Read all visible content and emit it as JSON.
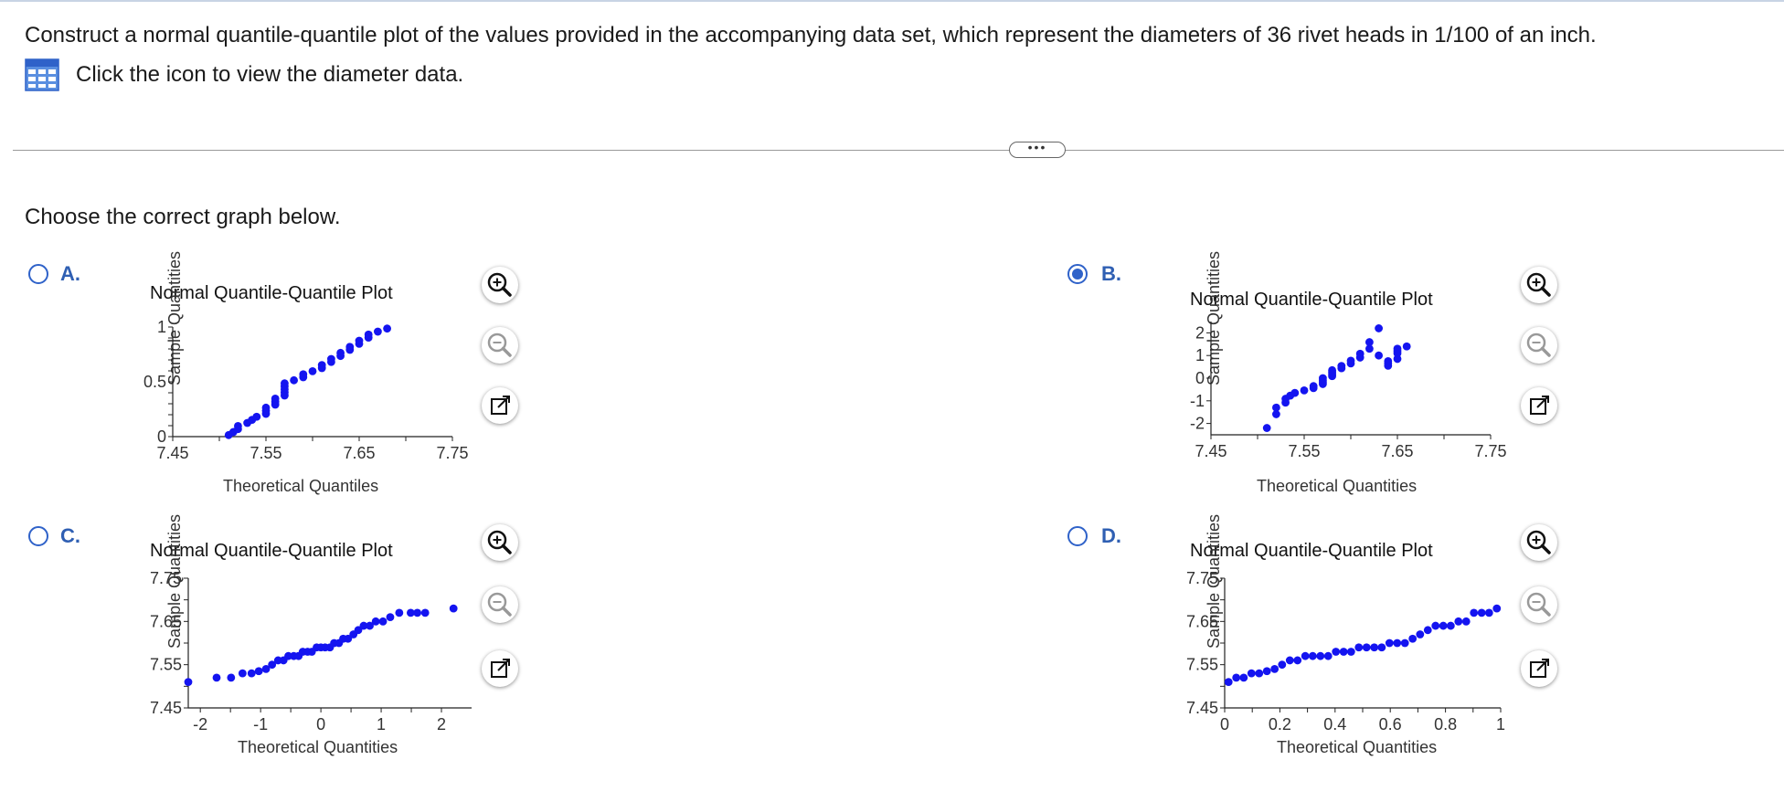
{
  "question": "Construct a normal quantile-quantile plot of the values provided in the accompanying data set, which represent the diameters of 36 rivet heads in 1/100 of an inch.",
  "data_link_label": "Click the icon to view the diameter data.",
  "more_button": "•••",
  "prompt": "Choose the correct graph below.",
  "colors": {
    "accent": "#2f62c9",
    "points": "#1414f0",
    "letter": "#2f5fb3"
  },
  "icons": {
    "table": "table-icon",
    "zoom_in": "zoom-in-icon",
    "zoom_out": "zoom-out-icon",
    "expand": "external-link-icon"
  },
  "options": [
    {
      "letter": "A.",
      "selected": false,
      "title": "Normal Quantile-Quantile Plot",
      "xlabel": "Theoretical Quantiles",
      "ylabel": "Sample Quantities"
    },
    {
      "letter": "B.",
      "selected": true,
      "title": "Normal Quantile-Quantile Plot",
      "xlabel": "Theoretical Quantities",
      "ylabel": "Sample Quantities"
    },
    {
      "letter": "C.",
      "selected": false,
      "title": "Normal Quantile-Quantile Plot",
      "xlabel": "Theoretical Quantities",
      "ylabel": "Sample Quantities"
    },
    {
      "letter": "D.",
      "selected": false,
      "title": "Normal Quantile-Quantile Plot",
      "xlabel": "Theoretical Quantities",
      "ylabel": "Sample Quantities"
    }
  ],
  "chart_data": [
    {
      "type": "scatter",
      "title": "Normal Quantile-Quantile Plot",
      "xlabel": "Theoretical Quantiles",
      "ylabel": "Sample Quantities",
      "xlim": [
        7.45,
        7.75
      ],
      "ylim": [
        0,
        1
      ],
      "xticks": [
        7.45,
        7.5,
        7.55,
        7.6,
        7.65,
        7.7,
        7.75
      ],
      "xtick_labels": [
        "7.45",
        "",
        "7.55",
        "",
        "7.65",
        "",
        "7.75"
      ],
      "yticks": [
        0,
        0.1,
        0.2,
        0.3,
        0.4,
        0.5,
        0.6,
        0.7,
        0.8,
        0.9,
        1
      ],
      "ytick_labels": [
        "0",
        "",
        "",
        "",
        "",
        "0.5",
        "",
        "",
        "",
        "",
        "1"
      ],
      "x": [
        7.51,
        7.515,
        7.52,
        7.52,
        7.53,
        7.535,
        7.54,
        7.55,
        7.55,
        7.55,
        7.56,
        7.56,
        7.56,
        7.57,
        7.57,
        7.57,
        7.57,
        7.57,
        7.58,
        7.59,
        7.59,
        7.6,
        7.61,
        7.61,
        7.62,
        7.62,
        7.63,
        7.63,
        7.64,
        7.64,
        7.65,
        7.65,
        7.66,
        7.66,
        7.67,
        7.68
      ],
      "y": [
        0.014,
        0.042,
        0.069,
        0.097,
        0.125,
        0.153,
        0.181,
        0.208,
        0.236,
        0.264,
        0.292,
        0.319,
        0.347,
        0.375,
        0.403,
        0.431,
        0.458,
        0.486,
        0.514,
        0.542,
        0.569,
        0.597,
        0.625,
        0.653,
        0.681,
        0.708,
        0.736,
        0.764,
        0.792,
        0.819,
        0.847,
        0.875,
        0.903,
        0.931,
        0.958,
        0.986
      ]
    },
    {
      "type": "scatter",
      "title": "Normal Quantile-Quantile Plot",
      "xlabel": "Theoretical Quantities",
      "ylabel": "Sample Quantities",
      "xlim": [
        7.45,
        7.75
      ],
      "ylim": [
        -2.5,
        2.5
      ],
      "xticks": [
        7.45,
        7.5,
        7.55,
        7.6,
        7.65,
        7.7,
        7.75
      ],
      "xtick_labels": [
        "7.45",
        "",
        "7.55",
        "",
        "7.65",
        "",
        "7.75"
      ],
      "yticks": [
        -2,
        -1,
        0,
        1,
        2
      ],
      "ytick_labels": [
        "-2",
        "-1",
        "0",
        "1",
        "2"
      ],
      "x": [
        7.51,
        7.52,
        7.52,
        7.53,
        7.53,
        7.535,
        7.54,
        7.55,
        7.56,
        7.56,
        7.57,
        7.57,
        7.57,
        7.57,
        7.58,
        7.58,
        7.58,
        7.58,
        7.59,
        7.59,
        7.6,
        7.6,
        7.61,
        7.61,
        7.62,
        7.62,
        7.63,
        7.63,
        7.64,
        7.64,
        7.64,
        7.65,
        7.65,
        7.65,
        7.65,
        7.66
      ],
      "y": [
        -2.2,
        -1.59,
        -1.3,
        -1.08,
        -0.91,
        -0.77,
        -0.65,
        -0.54,
        -0.44,
        -0.35,
        -0.26,
        -0.17,
        -0.09,
        0.0,
        0.09,
        0.17,
        0.26,
        0.35,
        0.44,
        0.54,
        0.65,
        0.77,
        0.91,
        1.08,
        1.3,
        1.59,
        2.2,
        1.0,
        0.55,
        0.65,
        0.75,
        0.85,
        1.1,
        1.2,
        1.3,
        1.4
      ]
    },
    {
      "type": "scatter",
      "title": "Normal Quantile-Quantile Plot",
      "xlabel": "Theoretical Quantities",
      "ylabel": "Sample Quantities",
      "xlim": [
        -2.2,
        2.5
      ],
      "ylim": [
        7.45,
        7.75
      ],
      "xticks": [
        -2,
        -1.5,
        -1,
        -0.5,
        0,
        0.5,
        1,
        1.5,
        2
      ],
      "xtick_labels": [
        "-2",
        "",
        "-1",
        "",
        "0",
        "",
        "1",
        "",
        "2"
      ],
      "yticks": [
        7.45,
        7.5,
        7.55,
        7.6,
        7.65,
        7.7,
        7.75
      ],
      "ytick_labels": [
        "7.45",
        "",
        "7.55",
        "",
        "7.65",
        "",
        "7.75"
      ],
      "x": [
        -2.2,
        -1.73,
        -1.49,
        -1.3,
        -1.15,
        -1.03,
        -0.91,
        -0.81,
        -0.71,
        -0.62,
        -0.54,
        -0.45,
        -0.37,
        -0.3,
        -0.22,
        -0.15,
        -0.07,
        0.0,
        0.07,
        0.15,
        0.22,
        0.3,
        0.37,
        0.45,
        0.54,
        0.62,
        0.71,
        0.81,
        0.91,
        1.03,
        1.15,
        1.3,
        1.49,
        1.73,
        2.2,
        1.6
      ],
      "y": [
        7.51,
        7.52,
        7.52,
        7.53,
        7.53,
        7.535,
        7.54,
        7.55,
        7.56,
        7.56,
        7.57,
        7.57,
        7.57,
        7.58,
        7.58,
        7.58,
        7.59,
        7.59,
        7.59,
        7.59,
        7.6,
        7.6,
        7.61,
        7.61,
        7.62,
        7.63,
        7.64,
        7.64,
        7.65,
        7.65,
        7.66,
        7.67,
        7.67,
        7.67,
        7.68,
        7.67
      ]
    },
    {
      "type": "scatter",
      "title": "Normal Quantile-Quantile Plot",
      "xlabel": "Theoretical Quantities",
      "ylabel": "Sample Quantities",
      "xlim": [
        0,
        1
      ],
      "ylim": [
        7.45,
        7.75
      ],
      "xticks": [
        0,
        0.1,
        0.2,
        0.3,
        0.4,
        0.5,
        0.6,
        0.7,
        0.8,
        0.9,
        1
      ],
      "xtick_labels": [
        "0",
        "",
        "0.2",
        "",
        "0.4",
        "",
        "0.6",
        "",
        "0.8",
        "",
        "1"
      ],
      "yticks": [
        7.45,
        7.5,
        7.55,
        7.6,
        7.65,
        7.7,
        7.75
      ],
      "ytick_labels": [
        "7.45",
        "",
        "7.55",
        "",
        "7.65",
        "",
        "7.75"
      ],
      "x": [
        0.014,
        0.042,
        0.069,
        0.097,
        0.125,
        0.153,
        0.181,
        0.208,
        0.236,
        0.264,
        0.292,
        0.319,
        0.347,
        0.375,
        0.403,
        0.431,
        0.458,
        0.486,
        0.514,
        0.542,
        0.569,
        0.597,
        0.625,
        0.653,
        0.681,
        0.708,
        0.736,
        0.764,
        0.792,
        0.819,
        0.847,
        0.875,
        0.903,
        0.931,
        0.958,
        0.986
      ],
      "y": [
        7.51,
        7.52,
        7.52,
        7.53,
        7.53,
        7.535,
        7.54,
        7.55,
        7.56,
        7.56,
        7.57,
        7.57,
        7.57,
        7.57,
        7.58,
        7.58,
        7.58,
        7.59,
        7.59,
        7.59,
        7.59,
        7.6,
        7.6,
        7.6,
        7.61,
        7.62,
        7.63,
        7.64,
        7.64,
        7.64,
        7.65,
        7.65,
        7.67,
        7.67,
        7.67,
        7.68
      ]
    }
  ]
}
